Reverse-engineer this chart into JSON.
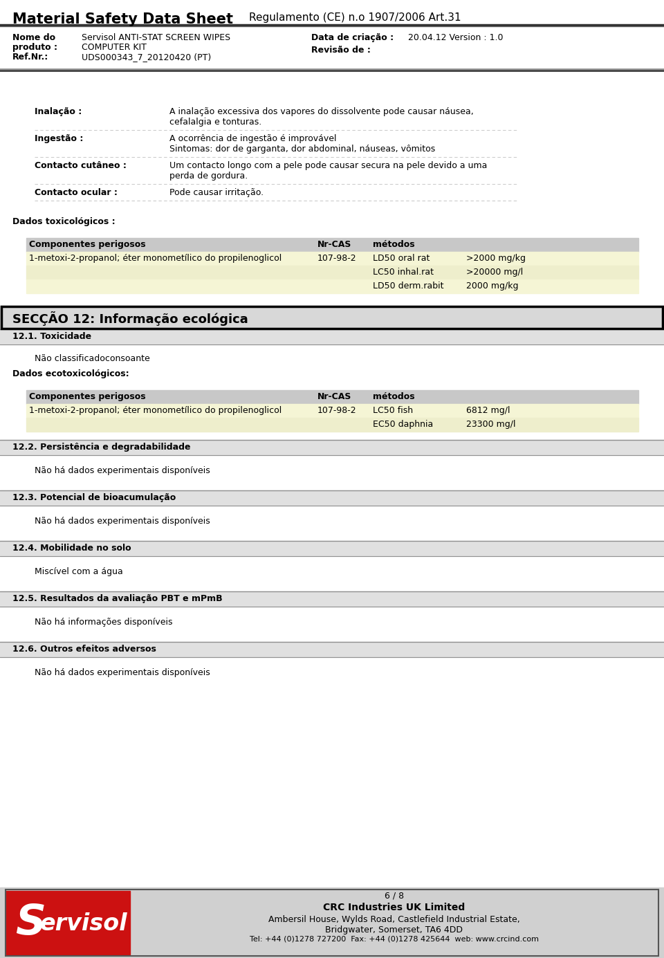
{
  "title": "Material Safety Data Sheet",
  "regulation": "Regulamento (CE) n.o 1907/2006 Art.31",
  "nome_label1": "Nome do",
  "nome_label2": "produto :",
  "nome_label3": "Ref.Nr.:",
  "nome_val1": "Servisol ANTI-STAT SCREEN WIPES",
  "nome_val2": "COMPUTER KIT",
  "nome_val3": "UDS000343_7_20120420 (PT)",
  "data_label": "Data de criação :",
  "data_value": "20.04.12 Version : 1.0",
  "revisao_label": "Revisão de :",
  "section_items": [
    {
      "label": "Inalação :",
      "text": "A inalação excessiva dos vapores do dissolvente pode causar náusea,\ncefalalgia e tonturas."
    },
    {
      "label": "Ingestão :",
      "text": "A ocorrência de ingestão é improvável\nSintomas: dor de garganta, dor abdominal, náuseas, vômitos"
    },
    {
      "label": "Contacto cutâneo :",
      "text": "Um contacto longo com a pele pode causar secura na pele devido a uma\nperda de gordura."
    },
    {
      "label": "Contacto ocular :",
      "text": "Pode causar irritação."
    }
  ],
  "dados_tox_label": "Dados toxicológicos :",
  "tox_table_header_bg": "#c8c8c8",
  "tox_table_row_bg": [
    "#f5f5d5",
    "#eeeecc",
    "#f5f5d5"
  ],
  "tox_rows": [
    [
      "1-metoxi-2-propanol; éter monometílico do propilenoglicol",
      "107-98-2",
      "LD50 oral rat",
      ">2000 mg/kg"
    ],
    [
      "",
      "",
      "LC50 inhal.rat",
      ">20000 mg/l"
    ],
    [
      "",
      "",
      "LD50 derm.rabit",
      "2000 mg/kg"
    ]
  ],
  "section12_title": "SECÇÃO 12: Informação ecológica",
  "section12_bg": "#d8d8d8",
  "subsection_121": "12.1. Toxicidade",
  "subsection_bg": "#e0e0e0",
  "text_121": "Não classificadoconsoante",
  "dados_eco_label": "Dados ecotoxicológicos:",
  "eco_table_header_bg": "#c8c8c8",
  "eco_table_row_bg": [
    "#f5f5d5",
    "#eeeecc"
  ],
  "eco_rows": [
    [
      "1-metoxi-2-propanol; éter monometílico do propilenoglicol",
      "107-98-2",
      "LC50 fish",
      "6812 mg/l"
    ],
    [
      "",
      "",
      "EC50 daphnia",
      "23300 mg/l"
    ]
  ],
  "subsection_122": "12.2. Persistência e degradabilidade",
  "text_122": "Não há dados experimentais disponíveis",
  "subsection_123": "12.3. Potencial de bioacumulação",
  "text_123": "Não há dados experimentais disponíveis",
  "subsection_124": "12.4. Mobilidade no solo",
  "text_124": "Miscível com a água",
  "subsection_125": "12.5. Resultados da avaliação PBT e mPmB",
  "text_125": "Não há informações disponíveis",
  "subsection_126": "12.6. Outros efeitos adversos",
  "text_126": "Não há dados experimentais disponíveis",
  "footer_page": "6 / 8",
  "footer_company": "CRC Industries UK Limited",
  "footer_address1": "Ambersil House, Wylds Road, Castlefield Industrial Estate,",
  "footer_address2": "Bridgwater, Somerset, TA6 4DD",
  "footer_tel": "Tel: +44 (0)1278 727200  Fax: +44 (0)1278 425644  web: www.crcind.com",
  "footer_bg": "#d0d0d0",
  "logo_red": "#cc1111",
  "bg_color": "#ffffff"
}
